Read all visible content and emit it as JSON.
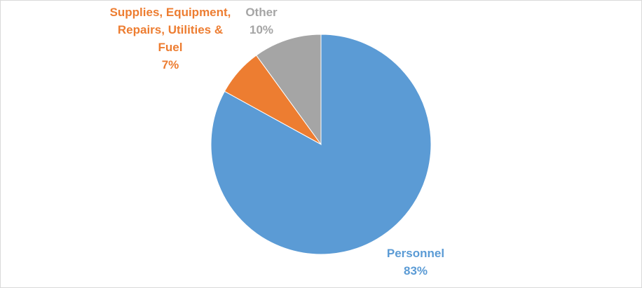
{
  "chart_data": {
    "type": "pie",
    "categories": [
      "Personnel",
      "Supplies, Equipment, Repairs, Utilities & Fuel",
      "Other"
    ],
    "values": [
      83,
      7,
      10
    ],
    "value_labels": [
      "83%",
      "7%",
      "10%"
    ],
    "colors": [
      "#5b9bd5",
      "#ed7d31",
      "#a5a5a5"
    ]
  }
}
